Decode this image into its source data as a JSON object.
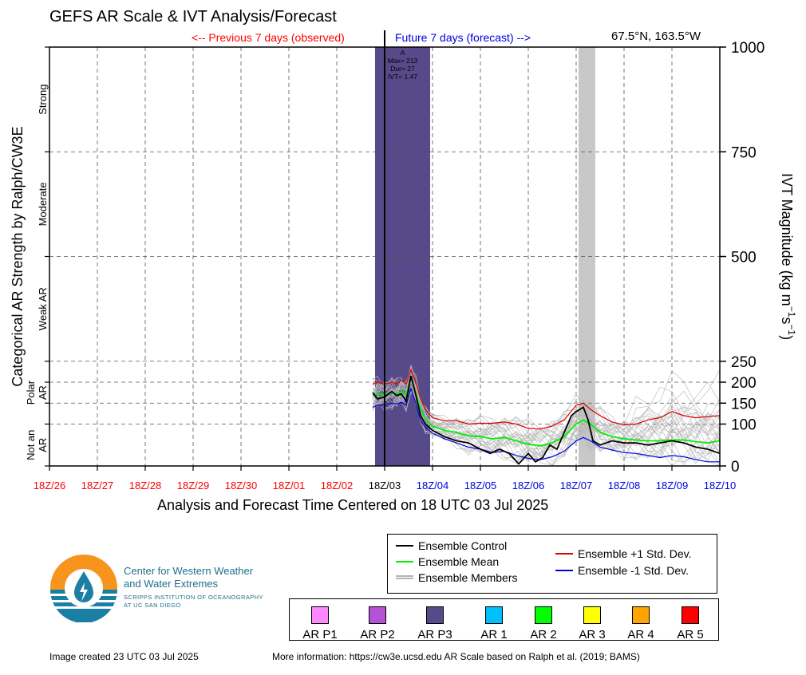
{
  "header": {
    "title": "GEFS AR Scale & IVT Analysis/Forecast",
    "previous_label": "<-- Previous 7 days (observed)",
    "future_label": "Future 7 days (forecast) -->",
    "location": "67.5°N, 163.5°W"
  },
  "colors": {
    "observed": "#ff0000",
    "forecast": "#0000dd",
    "ar_event": "#574a8a",
    "ensemble_control": "#000000",
    "ensemble_mean": "#00ee00",
    "ensemble_plus": "#dd0000",
    "ensemble_minus": "#0000dd",
    "ensemble_members": "#b5b5b5",
    "gray_band": "#c8c8c8"
  },
  "chart_data": {
    "type": "line",
    "title": "GEFS AR Scale & IVT Analysis/Forecast",
    "xlabel": "Analysis and Forecast Time Centered on 18 UTC 03 Jul 2025",
    "ylabel_left": "Categorical AR Strength by Ralph/CW3E",
    "ylabel_right": "IVT Magnitude (kg m^-1 s^-1)",
    "ylabel_right_parts": {
      "main": "IVT Magnitude (kg m",
      "sup1": "−1",
      "mid": "s",
      "sup2": "−1",
      "end": ")"
    },
    "ylim": [
      0,
      1000
    ],
    "y_ticks": [
      0,
      100,
      150,
      200,
      250,
      500,
      750,
      1000
    ],
    "y_tick_labels": [
      "0",
      "100",
      "150",
      "200",
      "250",
      "500",
      "750",
      "1000"
    ],
    "y_categories": [
      {
        "label": "Strong",
        "range": [
          750,
          1000
        ]
      },
      {
        "label": "Moderate",
        "range": [
          500,
          750
        ]
      },
      {
        "label": "Weak AR",
        "range": [
          250,
          500
        ]
      },
      {
        "label": "Polar AR",
        "range": [
          100,
          250
        ]
      },
      {
        "label": "Not an AR",
        "range": [
          0,
          100
        ]
      }
    ],
    "x_tick_labels": [
      {
        "label": "18Z/26",
        "period": "observed"
      },
      {
        "label": "18Z/27",
        "period": "observed"
      },
      {
        "label": "18Z/28",
        "period": "observed"
      },
      {
        "label": "18Z/29",
        "period": "observed"
      },
      {
        "label": "18Z/30",
        "period": "observed"
      },
      {
        "label": "18Z/01",
        "period": "observed"
      },
      {
        "label": "18Z/02",
        "period": "observed"
      },
      {
        "label": "18Z/03",
        "period": "now"
      },
      {
        "label": "18Z/04",
        "period": "forecast"
      },
      {
        "label": "18Z/05",
        "period": "forecast"
      },
      {
        "label": "18Z/06",
        "period": "forecast"
      },
      {
        "label": "18Z/07",
        "period": "forecast"
      },
      {
        "label": "18Z/08",
        "period": "forecast"
      },
      {
        "label": "18Z/09",
        "period": "forecast"
      },
      {
        "label": "18Z/10",
        "period": "forecast"
      }
    ],
    "x_unit": "days since 18Z/26",
    "ar_event": {
      "start_day": 6.8,
      "end_day": 7.95,
      "category": "AR P3",
      "label_lines": [
        "A",
        "Max= 213",
        "Dur= 27",
        "IVT= 1.47"
      ]
    },
    "gray_band": {
      "start_day": 11.05,
      "end_day": 11.4
    },
    "series": [
      {
        "name": "Ensemble Control",
        "color": "#000000",
        "x": [
          6.75,
          6.85,
          7,
          7.15,
          7.25,
          7.35,
          7.45,
          7.55,
          7.65,
          7.75,
          7.85,
          8,
          8.25,
          8.5,
          8.75,
          9,
          9.2,
          9.4,
          9.6,
          9.8,
          10,
          10.15,
          10.3,
          10.45,
          10.6,
          10.75,
          10.9,
          11,
          11.15,
          11.25,
          11.35,
          11.5,
          11.75,
          12,
          12.25,
          12.5,
          12.75,
          13,
          13.25,
          13.5,
          13.75,
          14
        ],
        "y": [
          175,
          160,
          165,
          178,
          168,
          172,
          155,
          215,
          170,
          120,
          100,
          85,
          70,
          60,
          55,
          40,
          30,
          40,
          30,
          5,
          30,
          10,
          20,
          50,
          40,
          80,
          120,
          130,
          140,
          110,
          60,
          50,
          60,
          55,
          55,
          50,
          55,
          60,
          55,
          45,
          40,
          30
        ]
      },
      {
        "name": "Ensemble Mean",
        "color": "#00ee00",
        "x": [
          6.75,
          6.85,
          7,
          7.15,
          7.25,
          7.35,
          7.45,
          7.55,
          7.65,
          7.75,
          7.85,
          8,
          8.25,
          8.5,
          8.75,
          9,
          9.25,
          9.5,
          9.75,
          10,
          10.25,
          10.5,
          10.75,
          11,
          11.15,
          11.3,
          11.5,
          11.75,
          12,
          12.25,
          12.5,
          12.75,
          13,
          13.25,
          13.5,
          13.75,
          14
        ],
        "y": [
          170,
          172,
          170,
          175,
          172,
          178,
          170,
          210,
          175,
          135,
          112,
          95,
          85,
          80,
          72,
          70,
          65,
          68,
          60,
          52,
          48,
          55,
          70,
          100,
          110,
          100,
          80,
          70,
          65,
          62,
          60,
          60,
          62,
          62,
          58,
          55,
          60
        ]
      },
      {
        "name": "Ensemble +1 Std. Dev.",
        "color": "#dd0000",
        "x": [
          6.75,
          6.85,
          7,
          7.15,
          7.25,
          7.35,
          7.45,
          7.55,
          7.65,
          7.75,
          7.85,
          8,
          8.25,
          8.5,
          8.75,
          9,
          9.25,
          9.5,
          9.75,
          10,
          10.25,
          10.5,
          10.75,
          11,
          11.15,
          11.3,
          11.5,
          11.75,
          12,
          12.25,
          12.5,
          12.75,
          13,
          13.25,
          13.5,
          13.75,
          14
        ],
        "y": [
          195,
          200,
          195,
          200,
          195,
          205,
          195,
          230,
          200,
          160,
          135,
          115,
          108,
          108,
          100,
          102,
          102,
          105,
          100,
          90,
          88,
          95,
          110,
          145,
          150,
          135,
          120,
          105,
          98,
          100,
          110,
          115,
          130,
          120,
          115,
          118,
          120
        ]
      },
      {
        "name": "Ensemble -1 Std. Dev.",
        "color": "#0000dd",
        "x": [
          6.75,
          6.85,
          7,
          7.15,
          7.25,
          7.35,
          7.45,
          7.55,
          7.65,
          7.75,
          7.85,
          8,
          8.25,
          8.5,
          8.75,
          9,
          9.25,
          9.5,
          9.75,
          10,
          10.25,
          10.5,
          10.75,
          11,
          11.15,
          11.3,
          11.5,
          11.75,
          12,
          12.25,
          12.5,
          12.75,
          13,
          13.25,
          13.5,
          13.75,
          14
        ],
        "y": [
          140,
          145,
          145,
          150,
          148,
          152,
          145,
          185,
          150,
          110,
          92,
          78,
          65,
          55,
          45,
          40,
          32,
          35,
          25,
          18,
          15,
          22,
          35,
          60,
          68,
          60,
          45,
          38,
          32,
          30,
          25,
          20,
          25,
          22,
          15,
          10,
          10
        ]
      }
    ],
    "members": {
      "name": "Ensemble Members",
      "color": "#b5b5b5"
    }
  },
  "legend": {
    "lines": [
      {
        "label": "Ensemble Control",
        "color": "#000000"
      },
      {
        "label": "Ensemble Mean",
        "color": "#00ee00"
      },
      {
        "label": "Ensemble Members",
        "color": "#b5b5b5"
      },
      {
        "label": "Ensemble +1 Std. Dev.",
        "color": "#dd0000"
      },
      {
        "label": "Ensemble -1 Std. Dev.",
        "color": "#0000dd"
      }
    ],
    "categories": [
      {
        "label": "AR P1",
        "color": "#ff88ff"
      },
      {
        "label": "AR P2",
        "color": "#b451d4"
      },
      {
        "label": "AR P3",
        "color": "#574a8a"
      },
      {
        "label": "AR 1",
        "color": "#00bfff"
      },
      {
        "label": "AR 2",
        "color": "#00ff00"
      },
      {
        "label": "AR 3",
        "color": "#ffff00"
      },
      {
        "label": "AR 4",
        "color": "#ffa500"
      },
      {
        "label": "AR 5",
        "color": "#ff0000"
      }
    ]
  },
  "logo": {
    "line1": "Center for Western Weather",
    "line2": "and Water Extremes",
    "line3": "SCRIPPS INSTITUTION OF OCEANOGRAPHY",
    "line4": "AT UC SAN DIEGO"
  },
  "footer": {
    "created": "Image created 23 UTC 03 Jul 2025",
    "more_info": "More information: https://cw3e.ucsd.edu AR Scale based on Ralph et al. (2019; BAMS)"
  }
}
